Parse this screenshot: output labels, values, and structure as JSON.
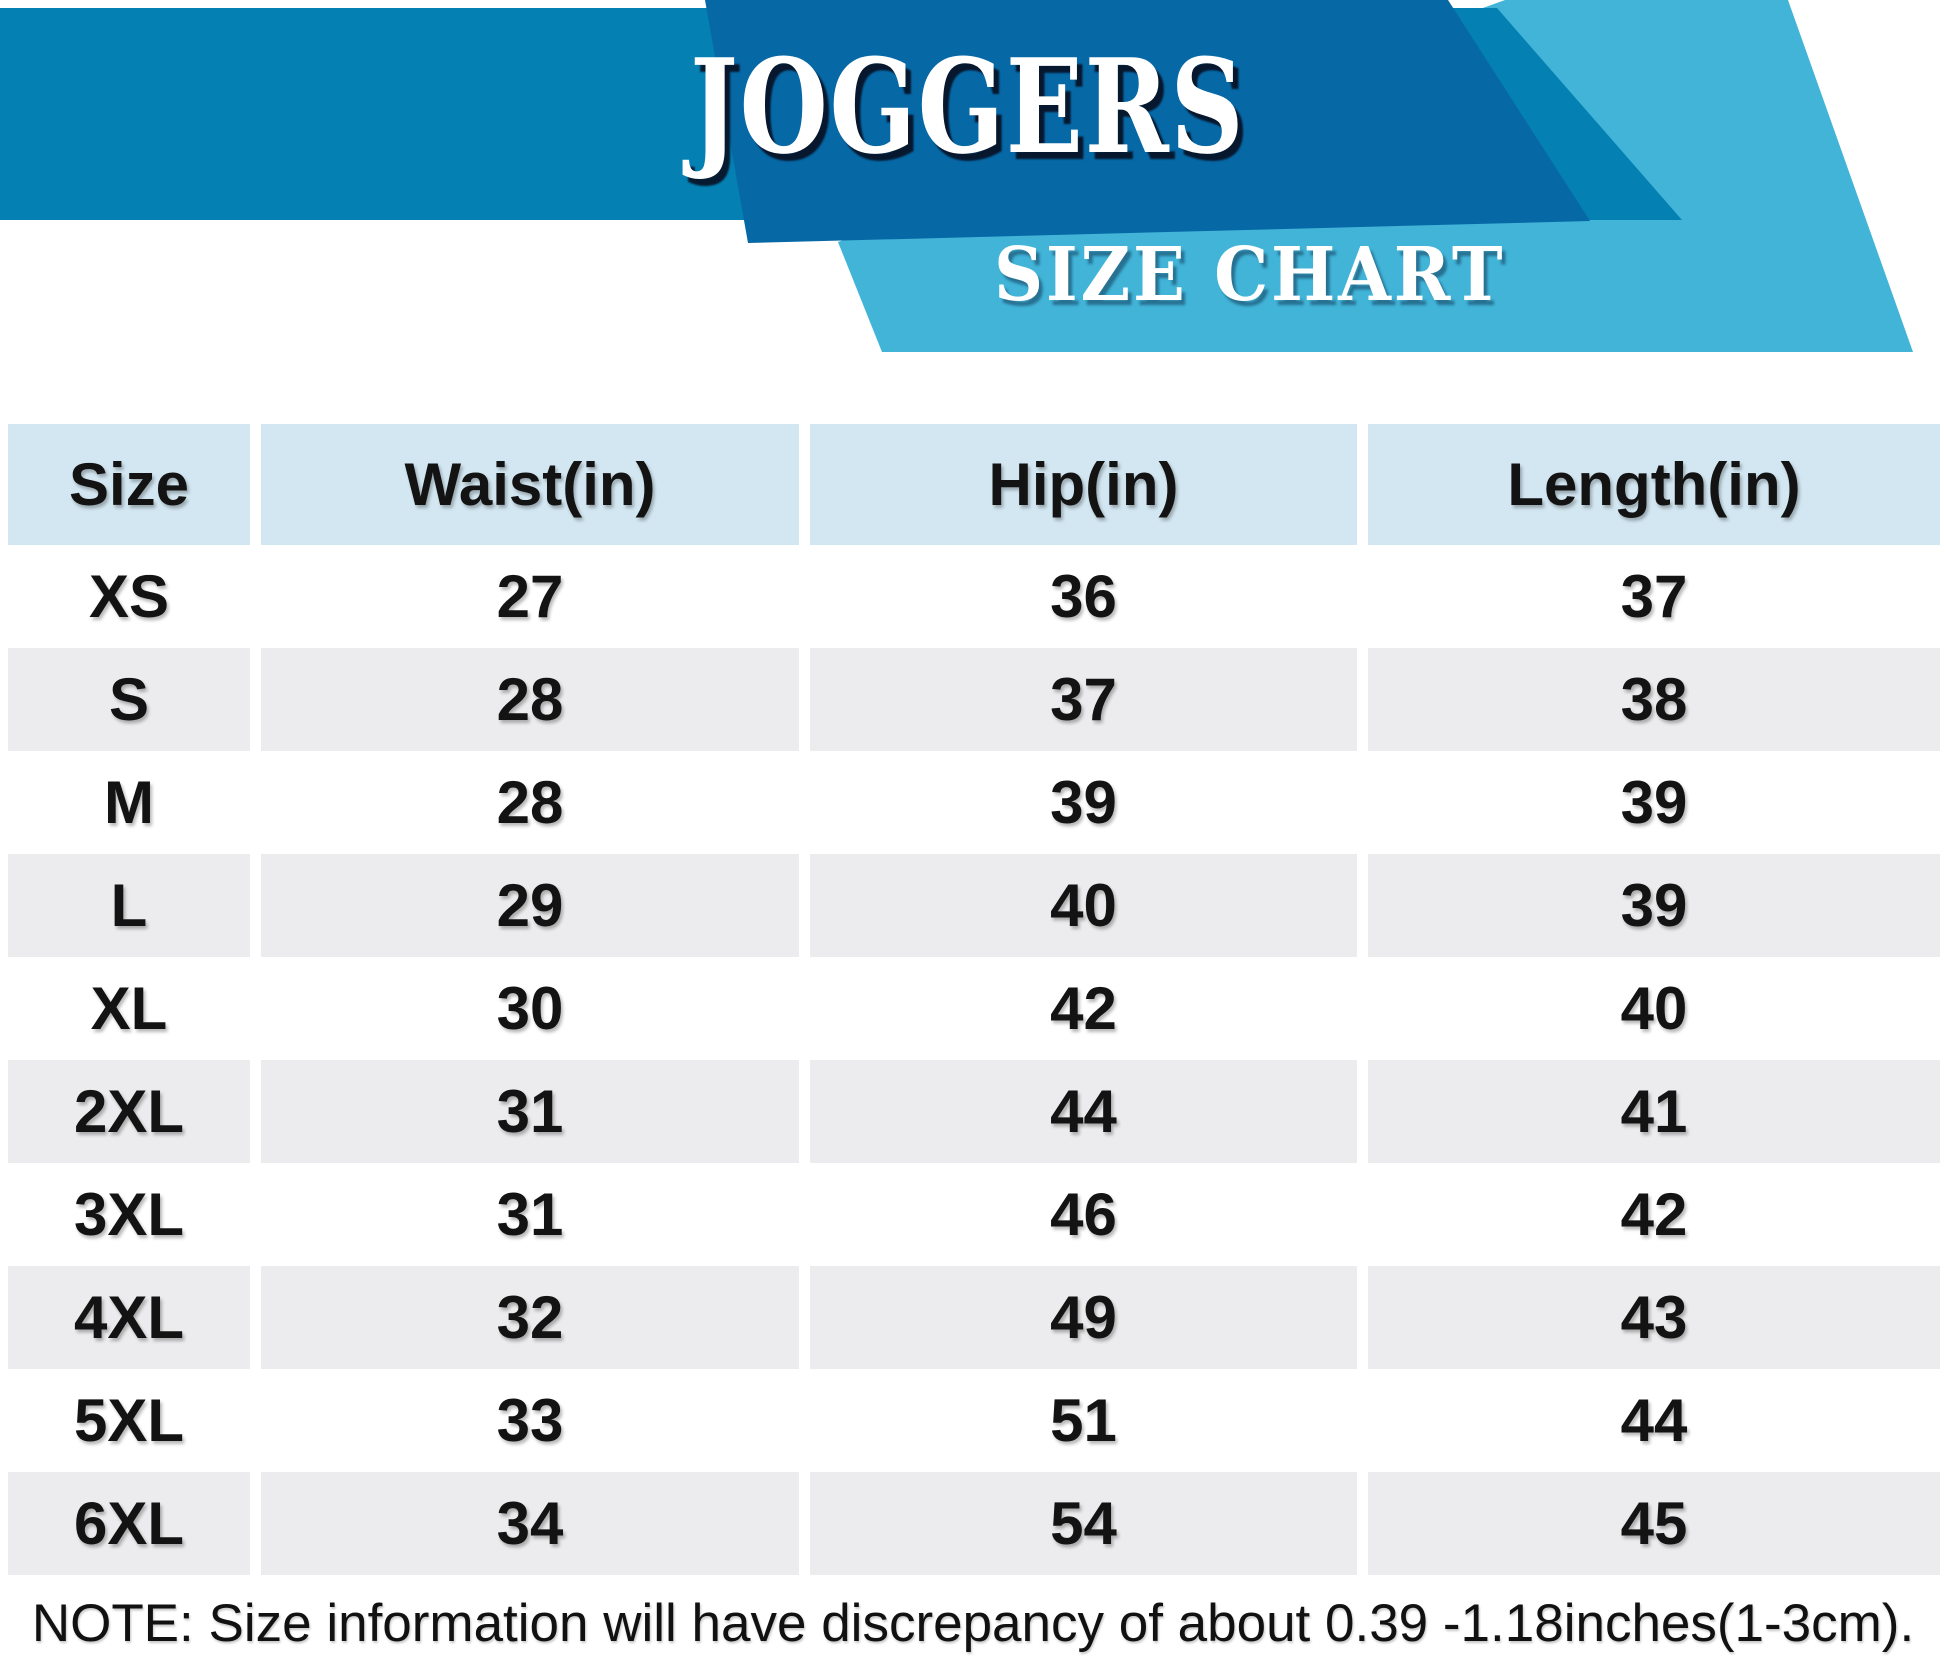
{
  "banner": {
    "title": "JOGGERS",
    "subtitle": "SIZE CHART",
    "colors": {
      "mid_blue": "#0480b2",
      "dark_blue": "#0768a6",
      "cyan": "#41b4d8"
    }
  },
  "table": {
    "colors": {
      "header_bg": "#d3e7f2",
      "stripe_bg": "#ececee",
      "text": "#131313"
    },
    "columns": [
      "Size",
      "Waist(in)",
      "Hip(in)",
      "Length(in)"
    ],
    "rows": [
      {
        "size": "XS",
        "waist": "27",
        "hip": "36",
        "length": "37"
      },
      {
        "size": "S",
        "waist": "28",
        "hip": "37",
        "length": "38"
      },
      {
        "size": "M",
        "waist": "28",
        "hip": "39",
        "length": "39"
      },
      {
        "size": "L",
        "waist": "29",
        "hip": "40",
        "length": "39"
      },
      {
        "size": "XL",
        "waist": "30",
        "hip": "42",
        "length": "40"
      },
      {
        "size": "2XL",
        "waist": "31",
        "hip": "44",
        "length": "41"
      },
      {
        "size": "3XL",
        "waist": "31",
        "hip": "46",
        "length": "42"
      },
      {
        "size": "4XL",
        "waist": "32",
        "hip": "49",
        "length": "43"
      },
      {
        "size": "5XL",
        "waist": "33",
        "hip": "51",
        "length": "44"
      },
      {
        "size": "6XL",
        "waist": "34",
        "hip": "54",
        "length": "45"
      }
    ]
  },
  "note": {
    "text": "NOTE: Size information will have discrepancy of about 0.39 -1.18inches(1-3cm)."
  }
}
